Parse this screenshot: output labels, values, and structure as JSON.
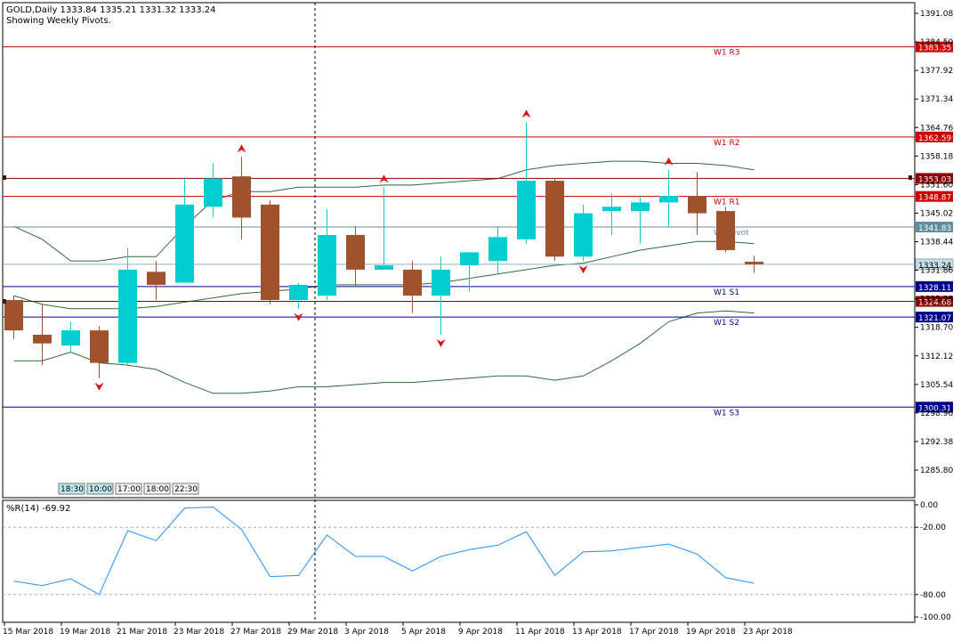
{
  "header": {
    "symbol_line": "GOLD,Daily  1333.84 1335.21 1331.32 1333.24",
    "subtitle": "Showing Weekly Pivots."
  },
  "session_buttons": [
    "18:30",
    "10:00",
    "17:00",
    "18:00",
    "22:30"
  ],
  "chart_data": [
    {
      "type": "candlestick",
      "title": "GOLD,Daily",
      "ylim": [
        1280.0,
        1394.0
      ],
      "price_ticks": [
        "1391.08",
        "1384.50",
        "1377.92",
        "1371.34",
        "1364.76",
        "1358.18",
        "1351.60",
        "1345.02",
        "1338.44",
        "1331.86",
        "1325.28",
        "1318.70",
        "1312.12",
        "1305.54",
        "1298.96",
        "1292.38",
        "1285.80"
      ],
      "date_labels": [
        "15 Mar 2018",
        "19 Mar 2018",
        "21 Mar 2018",
        "23 Mar 2018",
        "27 Mar 2018",
        "29 Mar 2018",
        "3 Apr 2018",
        "5 Apr 2018",
        "9 Apr 2018",
        "11 Apr 2018",
        "13 Apr 2018",
        "17 Apr 2018",
        "19 Apr 2018",
        "23 Apr 2018"
      ],
      "candles": [
        {
          "o": 1325.0,
          "h": 1326.0,
          "l": 1316.0,
          "c": 1318.0
        },
        {
          "o": 1317.0,
          "h": 1324.0,
          "l": 1310.0,
          "c": 1315.0
        },
        {
          "o": 1314.5,
          "h": 1320.0,
          "l": 1313.0,
          "c": 1318.0
        },
        {
          "o": 1318.0,
          "h": 1319.0,
          "l": 1307.0,
          "c": 1310.5
        },
        {
          "o": 1310.5,
          "h": 1337.0,
          "l": 1310.0,
          "c": 1332.0
        },
        {
          "o": 1331.5,
          "h": 1334.0,
          "l": 1325.0,
          "c": 1328.5
        },
        {
          "o": 1329.0,
          "h": 1353.0,
          "l": 1329.0,
          "c": 1347.0
        },
        {
          "o": 1346.5,
          "h": 1356.5,
          "l": 1344.0,
          "c": 1353.0
        },
        {
          "o": 1353.5,
          "h": 1358.0,
          "l": 1339.0,
          "c": 1344.0
        },
        {
          "o": 1347.0,
          "h": 1348.0,
          "l": 1324.0,
          "c": 1325.0
        },
        {
          "o": 1325.0,
          "h": 1329.0,
          "l": 1323.0,
          "c": 1328.5
        },
        {
          "o": 1326.0,
          "h": 1346.0,
          "l": 1325.0,
          "c": 1340.0
        },
        {
          "o": 1340.0,
          "h": 1342.0,
          "l": 1328.0,
          "c": 1332.0
        },
        {
          "o": 1332.0,
          "h": 1351.0,
          "l": 1332.0,
          "c": 1333.0
        },
        {
          "o": 1332.0,
          "h": 1334.0,
          "l": 1322.0,
          "c": 1326.0
        },
        {
          "o": 1326.0,
          "h": 1335.0,
          "l": 1317.0,
          "c": 1332.0
        },
        {
          "o": 1333.0,
          "h": 1336.0,
          "l": 1327.0,
          "c": 1336.0
        },
        {
          "o": 1334.0,
          "h": 1342.0,
          "l": 1331.0,
          "c": 1339.5
        },
        {
          "o": 1339.0,
          "h": 1366.0,
          "l": 1338.0,
          "c": 1352.5
        },
        {
          "o": 1352.5,
          "h": 1353.0,
          "l": 1334.0,
          "c": 1335.0
        },
        {
          "o": 1335.0,
          "h": 1347.0,
          "l": 1334.0,
          "c": 1345.0
        },
        {
          "o": 1345.5,
          "h": 1349.5,
          "l": 1340.0,
          "c": 1346.5
        },
        {
          "o": 1345.5,
          "h": 1349.0,
          "l": 1338.0,
          "c": 1347.5
        },
        {
          "o": 1347.5,
          "h": 1355.0,
          "l": 1342.0,
          "c": 1349.0
        },
        {
          "o": 1349.0,
          "h": 1354.5,
          "l": 1340.0,
          "c": 1345.0
        },
        {
          "o": 1345.5,
          "h": 1346.5,
          "l": 1336.0,
          "c": 1336.5
        },
        {
          "o": 1333.84,
          "h": 1335.21,
          "l": 1331.32,
          "c": 1333.24
        }
      ],
      "bands": {
        "upper": [
          1342,
          1339,
          1334,
          1334,
          1335,
          1335,
          1342,
          1348,
          1350,
          1350,
          1351,
          1351,
          1351,
          1351.5,
          1351.5,
          1352,
          1352.5,
          1353,
          1355,
          1356,
          1356.5,
          1357,
          1357,
          1356.5,
          1356.5,
          1356,
          1355
        ],
        "middle": [
          1326,
          1324,
          1323,
          1323,
          1323,
          1323.5,
          1324.5,
          1325.5,
          1326.5,
          1327,
          1327.5,
          1328.5,
          1328.5,
          1328.5,
          1328.5,
          1329,
          1330,
          1331,
          1332,
          1333,
          1333.5,
          1335,
          1336.5,
          1337.5,
          1338.5,
          1338.5,
          1338
        ],
        "lower": [
          1311,
          1311,
          1313,
          1310.5,
          1310,
          1309,
          1306,
          1303.5,
          1303.5,
          1304,
          1305,
          1305,
          1305.5,
          1306,
          1306,
          1306.5,
          1307,
          1307.5,
          1307.5,
          1306.5,
          1307.5,
          1311,
          1315,
          1320,
          1322,
          1322.5,
          1322
        ]
      },
      "fractals": [
        {
          "index": 3,
          "dir": "down",
          "price": 1307.0
        },
        {
          "index": 8,
          "dir": "up",
          "price": 1358.0
        },
        {
          "index": 10,
          "dir": "down",
          "price": 1323.0
        },
        {
          "index": 13,
          "dir": "up",
          "price": 1351.0
        },
        {
          "index": 15,
          "dir": "down",
          "price": 1317.0
        },
        {
          "index": 18,
          "dir": "up",
          "price": 1366.0
        },
        {
          "index": 20,
          "dir": "down",
          "price": 1334.0
        },
        {
          "index": 23,
          "dir": "up",
          "price": 1355.0
        }
      ],
      "pivot_lines": [
        {
          "label": "W1 R3",
          "price": 1383.35,
          "value_label": "1383.35",
          "color": "#cc0000"
        },
        {
          "label": "W1 R2",
          "price": 1362.59,
          "value_label": "1362.59",
          "color": "#cc0000"
        },
        {
          "label": "W1 R1",
          "price": 1348.87,
          "value_label": "1348.87",
          "color": "#cc0000"
        },
        {
          "label": "W1 Pivot",
          "price": 1341.83,
          "value_label": "1341.83",
          "color": "#5f8f9f"
        },
        {
          "label": "W1 S1",
          "price": 1328.11,
          "value_label": "1328.11",
          "color": "#00008b"
        },
        {
          "label": "W1 S2",
          "price": 1321.07,
          "value_label": "1321.07",
          "color": "#00008b"
        },
        {
          "label": "W1 S3",
          "price": 1300.31,
          "value_label": "1300.31",
          "color": "#00008b"
        }
      ],
      "extra_lines": [
        {
          "price": 1353.03,
          "value_label": "1353.03",
          "color": "#8b0000"
        },
        {
          "price": 1324.68,
          "value_label": "1324.68",
          "color": "#8b0000"
        }
      ],
      "current_price": {
        "price": 1333.24,
        "value_label": "1333.24"
      },
      "colors": {
        "bull": "#00ced1",
        "bear": "#a0522d",
        "band": "#2e6b3a",
        "fractal": "#dd1111"
      }
    },
    {
      "type": "line",
      "title": "%R(14) -69.92",
      "ylim": [
        -100,
        0
      ],
      "ticks": [
        "0.00",
        "-20.00",
        "-80.00",
        "-100.00"
      ],
      "levels": [
        -20,
        -80
      ],
      "values": [
        -68,
        -72,
        -66,
        -80,
        -23,
        -32,
        -3,
        -2,
        -22,
        -64,
        -63,
        -27,
        -46,
        -46,
        -59,
        -46,
        -40,
        -36,
        -24,
        -63,
        -42,
        -41,
        -38,
        -35,
        -44,
        -65,
        -69.92
      ],
      "color": "#1e90ff"
    }
  ]
}
